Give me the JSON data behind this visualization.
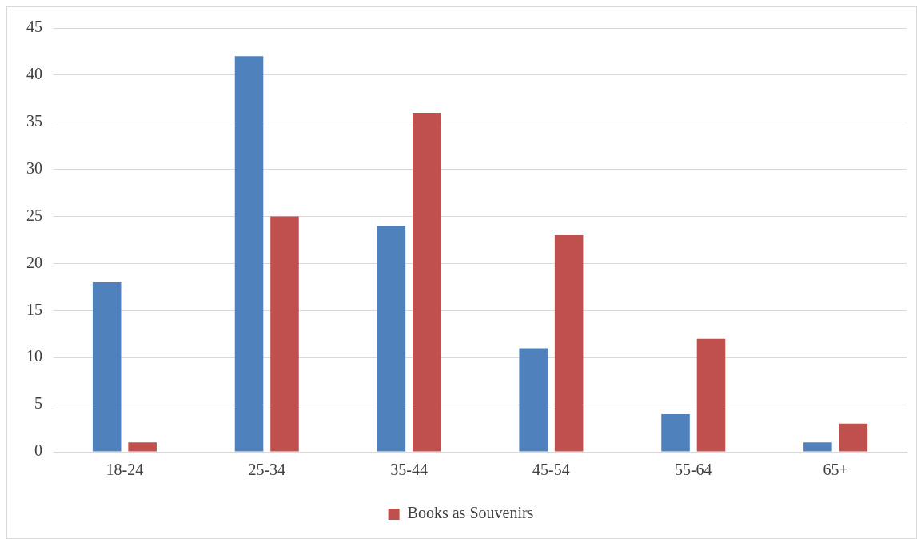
{
  "chart_data": {
    "type": "bar",
    "categories": [
      "18-24",
      "25-34",
      "35-44",
      "45-54",
      "55-64",
      "65+"
    ],
    "series": [
      {
        "color": "#4f81bd",
        "values": [
          18,
          42,
          24,
          11,
          4,
          1
        ]
      },
      {
        "name": "Books as Souvenirs",
        "color": "#c0504d",
        "values": [
          1,
          25,
          36,
          23,
          12,
          3
        ]
      }
    ],
    "ylim": [
      0,
      45
    ],
    "yticks": [
      0,
      5,
      10,
      15,
      20,
      25,
      30,
      35,
      40,
      45
    ],
    "grid": "y",
    "legend": "bottom"
  }
}
